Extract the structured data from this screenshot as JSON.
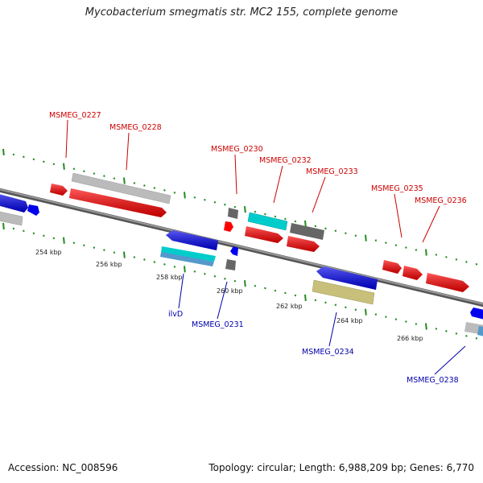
{
  "title": "Mycobacterium smegmatis str. MC2 155, complete genome",
  "footer": {
    "accession": "Accession: NC_008596",
    "summary": "Topology: circular; Length: 6,988,209 bp; Genes: 6,770"
  },
  "colors": {
    "forward": "#ff0000",
    "reverse": "#0000ee",
    "label_forward": "#cc0000",
    "label_reverse": "#0000aa",
    "backbone": "#777777",
    "ticks_outer": "#228b22",
    "ticks_inner": "#228b22"
  },
  "scale": {
    "ticks": [
      {
        "label": "254 kbp"
      },
      {
        "label": "256 kbp"
      },
      {
        "label": "258 kbp"
      },
      {
        "label": "260 kbp"
      },
      {
        "label": "262 kbp"
      },
      {
        "label": "264 kbp"
      },
      {
        "label": "266 kbp"
      }
    ]
  },
  "genes": [
    {
      "label": "MSMEG_0227",
      "strand": "+"
    },
    {
      "label": "MSMEG_0228",
      "strand": "+"
    },
    {
      "label": "MSMEG_0230",
      "strand": "+"
    },
    {
      "label": "MSMEG_0232",
      "strand": "+"
    },
    {
      "label": "MSMEG_0233",
      "strand": "+"
    },
    {
      "label": "MSMEG_0235",
      "strand": "+"
    },
    {
      "label": "MSMEG_0236",
      "strand": "+"
    },
    {
      "label": "ilvD",
      "strand": "-"
    },
    {
      "label": "MSMEG_0231",
      "strand": "-"
    },
    {
      "label": "MSMEG_0234",
      "strand": "-"
    },
    {
      "label": "MSMEG_0238",
      "strand": "-"
    }
  ]
}
